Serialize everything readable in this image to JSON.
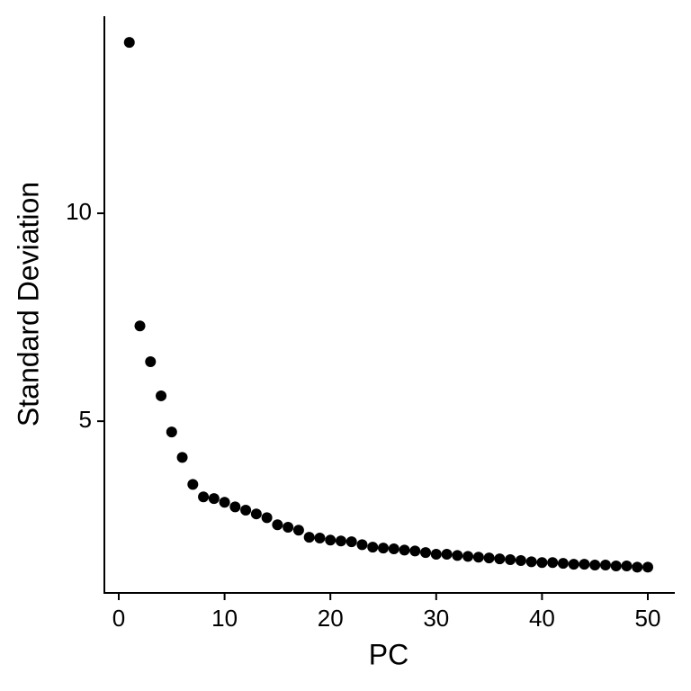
{
  "chart_data": {
    "type": "scatter",
    "x_label": "PC",
    "y_label": "Standard Deviation",
    "x": [
      1,
      2,
      3,
      4,
      5,
      6,
      7,
      8,
      9,
      10,
      11,
      12,
      13,
      14,
      15,
      16,
      17,
      18,
      19,
      20,
      21,
      22,
      23,
      24,
      25,
      26,
      27,
      28,
      29,
      30,
      31,
      32,
      33,
      34,
      35,
      36,
      37,
      38,
      39,
      40,
      41,
      42,
      43,
      44,
      45,
      46,
      47,
      48,
      49,
      50
    ],
    "values": [
      14.11,
      7.29,
      6.43,
      5.61,
      4.74,
      4.13,
      3.48,
      3.18,
      3.14,
      3.05,
      2.94,
      2.86,
      2.77,
      2.68,
      2.51,
      2.45,
      2.38,
      2.21,
      2.19,
      2.14,
      2.12,
      2.1,
      2.03,
      1.97,
      1.95,
      1.93,
      1.9,
      1.88,
      1.84,
      1.8,
      1.8,
      1.77,
      1.75,
      1.73,
      1.71,
      1.69,
      1.67,
      1.65,
      1.62,
      1.6,
      1.6,
      1.58,
      1.56,
      1.56,
      1.54,
      1.54,
      1.52,
      1.52,
      1.49,
      1.49
    ],
    "color": "#000000",
    "xlim": [
      -1.36,
      52.55
    ],
    "ylim": [
      0.87,
      14.74
    ],
    "xticks": [
      0,
      10,
      20,
      30,
      40,
      50
    ],
    "yticks": [
      5,
      10
    ]
  }
}
